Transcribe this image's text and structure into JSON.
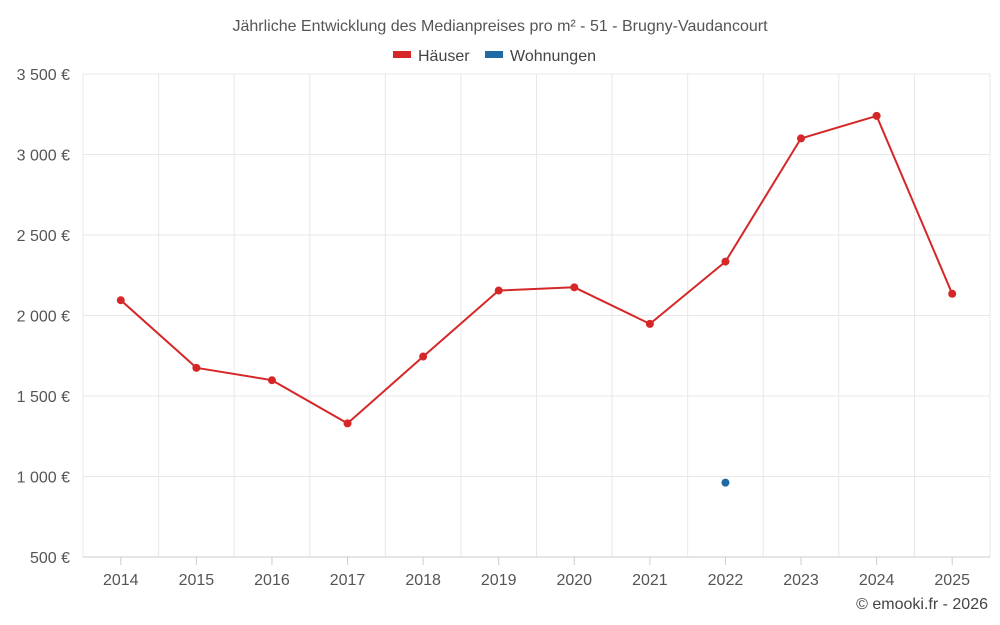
{
  "chart_data": {
    "type": "line",
    "title": "Jährliche Entwicklung des Medianpreises pro m² - 51 - Brugny-Vaudancourt",
    "categories": [
      "2014",
      "2015",
      "2016",
      "2017",
      "2018",
      "2019",
      "2020",
      "2021",
      "2022",
      "2023",
      "2024",
      "2025"
    ],
    "series": [
      {
        "name": "Häuser",
        "color": "#d62728",
        "values": [
          2095,
          1675,
          1598,
          1330,
          1745,
          2155,
          2175,
          1948,
          2335,
          3100,
          3240,
          2135
        ]
      },
      {
        "name": "Wohnungen",
        "color": "#1f6aa5",
        "values": [
          null,
          null,
          null,
          null,
          null,
          null,
          null,
          null,
          962,
          null,
          null,
          null
        ]
      }
    ],
    "ylim": [
      500,
      3500
    ],
    "yticks": [
      {
        "value": 500,
        "label": "500 €"
      },
      {
        "value": 1000,
        "label": "1 000 €"
      },
      {
        "value": 1500,
        "label": "1 500 €"
      },
      {
        "value": 2000,
        "label": "2 000 €"
      },
      {
        "value": 2500,
        "label": "2 500 €"
      },
      {
        "value": 3000,
        "label": "3 000 €"
      },
      {
        "value": 3500,
        "label": "3 500 €"
      }
    ],
    "grid": true,
    "legend_position": "top-center"
  },
  "credit": "© emooki.fr - 2026"
}
